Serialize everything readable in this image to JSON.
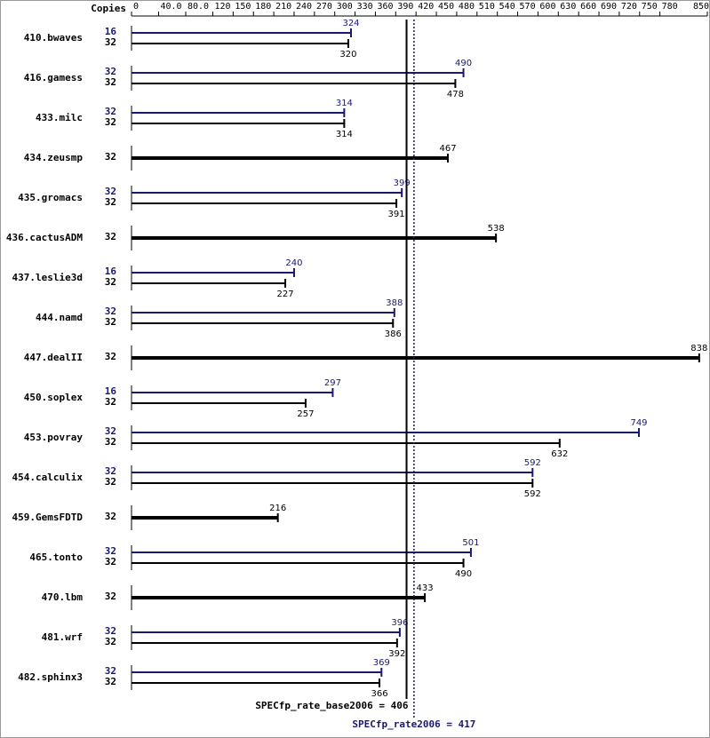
{
  "chart_data": {
    "type": "bar",
    "copies_label": "Copies",
    "categories": [
      "410.bwaves",
      "416.gamess",
      "433.milc",
      "434.zeusmp",
      "435.gromacs",
      "436.cactusADM",
      "437.leslie3d",
      "444.namd",
      "447.dealII",
      "450.soplex",
      "453.povray",
      "454.calculix",
      "459.GemsFDTD",
      "465.tonto",
      "470.lbm",
      "481.wrf",
      "482.sphinx3"
    ],
    "series": [
      {
        "color": "#191970",
        "copies": [
          16,
          32,
          32,
          null,
          32,
          null,
          16,
          32,
          null,
          16,
          32,
          32,
          null,
          32,
          null,
          32,
          32
        ],
        "values": [
          324,
          490,
          314,
          null,
          399,
          null,
          240,
          388,
          null,
          297,
          749,
          592,
          null,
          501,
          null,
          396,
          369
        ]
      },
      {
        "color": "#000000",
        "copies": [
          32,
          32,
          32,
          32,
          32,
          32,
          32,
          32,
          32,
          32,
          32,
          32,
          32,
          32,
          32,
          32,
          32
        ],
        "values": [
          320,
          478,
          314,
          467,
          391,
          538,
          227,
          386,
          838,
          257,
          632,
          592,
          216,
          490,
          433,
          392,
          366
        ]
      }
    ],
    "references": [
      {
        "label": "SPECfp_rate_base2006 = 406",
        "value": 406,
        "color": "#000000",
        "dash": false
      },
      {
        "label": "SPECfp_rate2006 = 417",
        "value": 417,
        "color": "#191970",
        "dash": true
      }
    ],
    "xlim": [
      0,
      850
    ],
    "xticks": [
      0,
      {
        "value": 40,
        "label": "40.0"
      },
      {
        "value": 80,
        "label": "80.0"
      },
      120,
      150,
      180,
      210,
      240,
      270,
      300,
      330,
      360,
      390,
      420,
      450,
      480,
      510,
      540,
      570,
      600,
      630,
      660,
      690,
      720,
      750,
      780,
      850
    ]
  }
}
